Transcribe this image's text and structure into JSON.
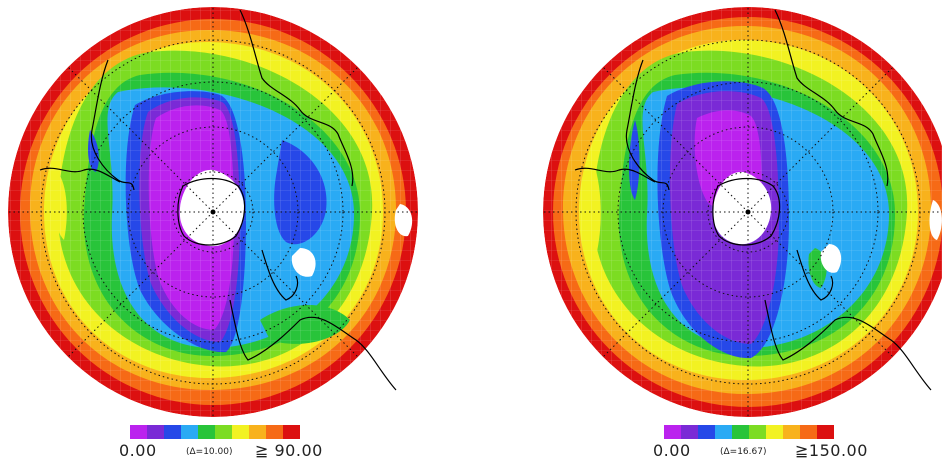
{
  "panels": [
    {
      "colorbar": {
        "min_label": "0.00",
        "delta_label": "(Δ=10.00)",
        "max_label": "≧ 90.00",
        "colors": [
          "#bb22ee",
          "#7a2ad6",
          "#2648e8",
          "#2aaaf4",
          "#28c43a",
          "#7cdc22",
          "#f2f222",
          "#f8b21c",
          "#f66a16",
          "#dc1010"
        ]
      }
    },
    {
      "colorbar": {
        "min_label": "0.00",
        "delta_label": "(Δ=16.67)",
        "max_label": "≧150.00",
        "colors": [
          "#bb22ee",
          "#7a2ad6",
          "#2648e8",
          "#2aaaf4",
          "#28c43a",
          "#7cdc22",
          "#f2f222",
          "#f8b21c",
          "#f66a16",
          "#dc1010"
        ]
      }
    }
  ]
}
